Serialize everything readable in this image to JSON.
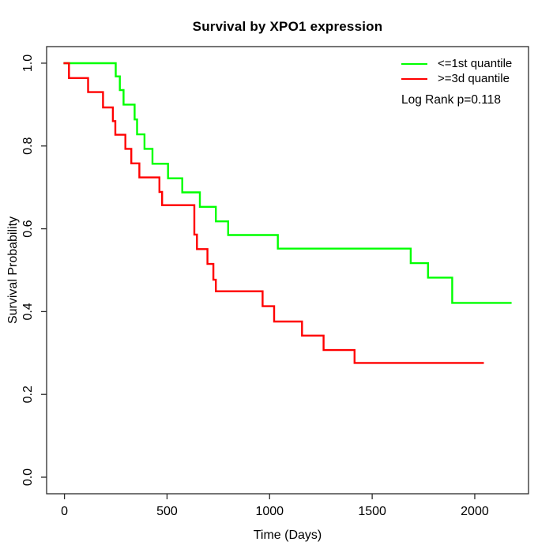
{
  "chart_data": {
    "type": "line",
    "subtype": "kaplan-meier-step-curves",
    "title": "Survival by XPO1 expression",
    "xlabel": "Time (Days)",
    "ylabel": "Survival Probability",
    "x_ticks": [
      0,
      500,
      1000,
      1500,
      2000
    ],
    "y_ticks": [
      "0.0",
      "0.2",
      "0.4",
      "0.6",
      "0.8",
      "1.0"
    ],
    "y_tick_values": [
      0.0,
      0.2,
      0.4,
      0.6,
      0.8,
      1.0
    ],
    "xlim": [
      -87,
      2262
    ],
    "ylim": [
      -0.04,
      1.04
    ],
    "grid": false,
    "frame_box": true,
    "legend_position": "top-right",
    "annotation": "Log Rank p=0.118",
    "axis_color": "#2b2b2b",
    "series": [
      {
        "name": "<=1st quantile",
        "color": "#00ff00",
        "end_time": 2175,
        "steps": [
          [
            0,
            1.0
          ],
          [
            250,
            0.968
          ],
          [
            270,
            0.935
          ],
          [
            288,
            0.9
          ],
          [
            342,
            0.864
          ],
          [
            354,
            0.828
          ],
          [
            390,
            0.793
          ],
          [
            429,
            0.757
          ],
          [
            505,
            0.722
          ],
          [
            574,
            0.688
          ],
          [
            660,
            0.653
          ],
          [
            738,
            0.618
          ],
          [
            798,
            0.585
          ],
          [
            1040,
            0.552
          ],
          [
            1688,
            0.517
          ],
          [
            1772,
            0.482
          ],
          [
            1890,
            0.421
          ]
        ]
      },
      {
        "name": ">=3d quantile",
        "color": "#ff0000",
        "end_time": 2040,
        "steps": [
          [
            0,
            1.0
          ],
          [
            22,
            0.964
          ],
          [
            115,
            0.93
          ],
          [
            188,
            0.893
          ],
          [
            236,
            0.86
          ],
          [
            248,
            0.827
          ],
          [
            297,
            0.793
          ],
          [
            326,
            0.758
          ],
          [
            365,
            0.724
          ],
          [
            463,
            0.689
          ],
          [
            476,
            0.657
          ],
          [
            633,
            0.586
          ],
          [
            646,
            0.551
          ],
          [
            697,
            0.515
          ],
          [
            726,
            0.477
          ],
          [
            738,
            0.449
          ],
          [
            966,
            0.413
          ],
          [
            1022,
            0.376
          ],
          [
            1158,
            0.342
          ],
          [
            1263,
            0.307
          ],
          [
            1414,
            0.276
          ]
        ]
      }
    ]
  }
}
